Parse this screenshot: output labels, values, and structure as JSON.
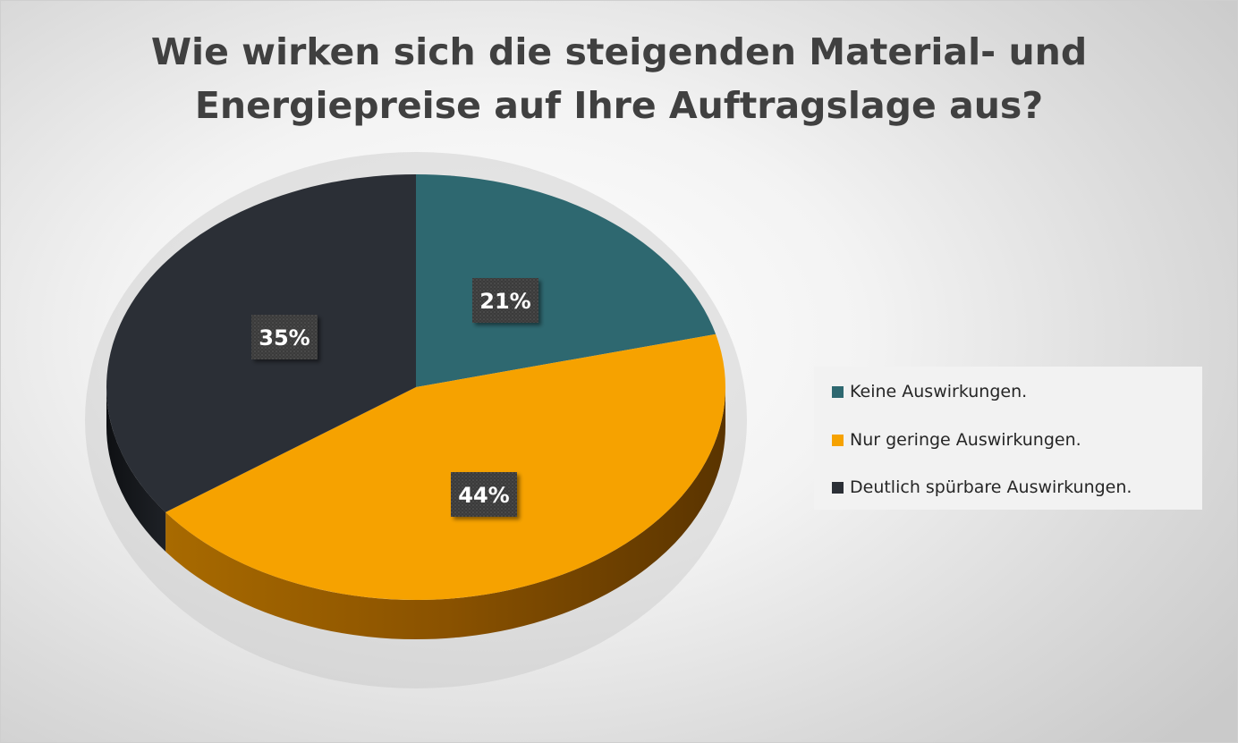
{
  "chart_data": {
    "type": "pie",
    "title_line1": "Wie wirken sich die steigenden Material- und",
    "title_line2": "Energiepreise auf Ihre Auftragslage aus?",
    "categories": [
      "Keine Auswirkungen.",
      "Nur geringe Auswirkungen.",
      "Deutlich spürbare Auswirkungen."
    ],
    "values": [
      21,
      44,
      35
    ],
    "data_labels": [
      "21%",
      "44%",
      "35%"
    ],
    "colors": [
      "#2e6870",
      "#f6a200",
      "#2b2f36"
    ],
    "legend_position": "right",
    "style": "3d-pie"
  }
}
